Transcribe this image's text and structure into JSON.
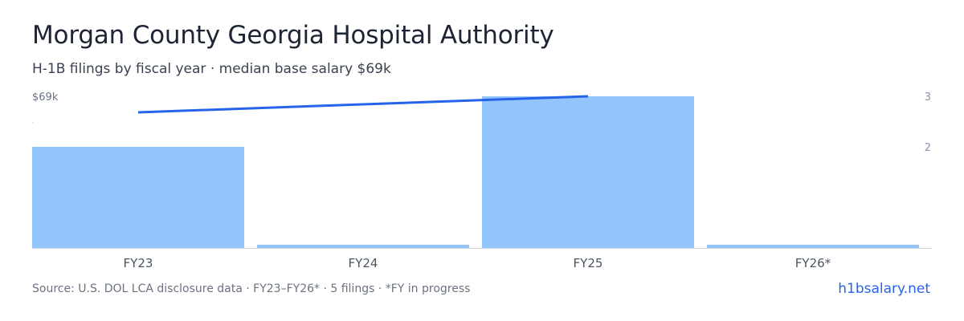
{
  "header": {
    "title": "Morgan County Georgia Hospital Authority",
    "subtitle": "H-1B filings by fiscal year · median base salary $69k"
  },
  "footer": {
    "source": "Source: U.S. DOL LCA disclosure data · FY23–FY26* · 5 filings · *FY in progress",
    "brand": "h1bsalary.net"
  },
  "colors": {
    "bar": "#93c5fd",
    "line": "#2563eb",
    "axis": "#d1d5db",
    "tick_text": "#6b7280",
    "right_tick_text": "#8a93a6"
  },
  "chart_data": {
    "type": "bar",
    "categories": [
      "FY23",
      "FY24",
      "FY25",
      "FY26*"
    ],
    "series": [
      {
        "type": "bar",
        "axis": "right",
        "values": [
          2,
          0,
          3,
          0
        ]
      },
      {
        "type": "line",
        "axis": "left",
        "values": [
          68.5,
          null,
          69,
          null
        ]
      }
    ],
    "y_right": {
      "ticks": [
        "2",
        "3"
      ],
      "lim": [
        0,
        3
      ]
    },
    "y_left": {
      "ticks": [
        "$69k"
      ]
    },
    "grid": false,
    "legend": "none"
  }
}
